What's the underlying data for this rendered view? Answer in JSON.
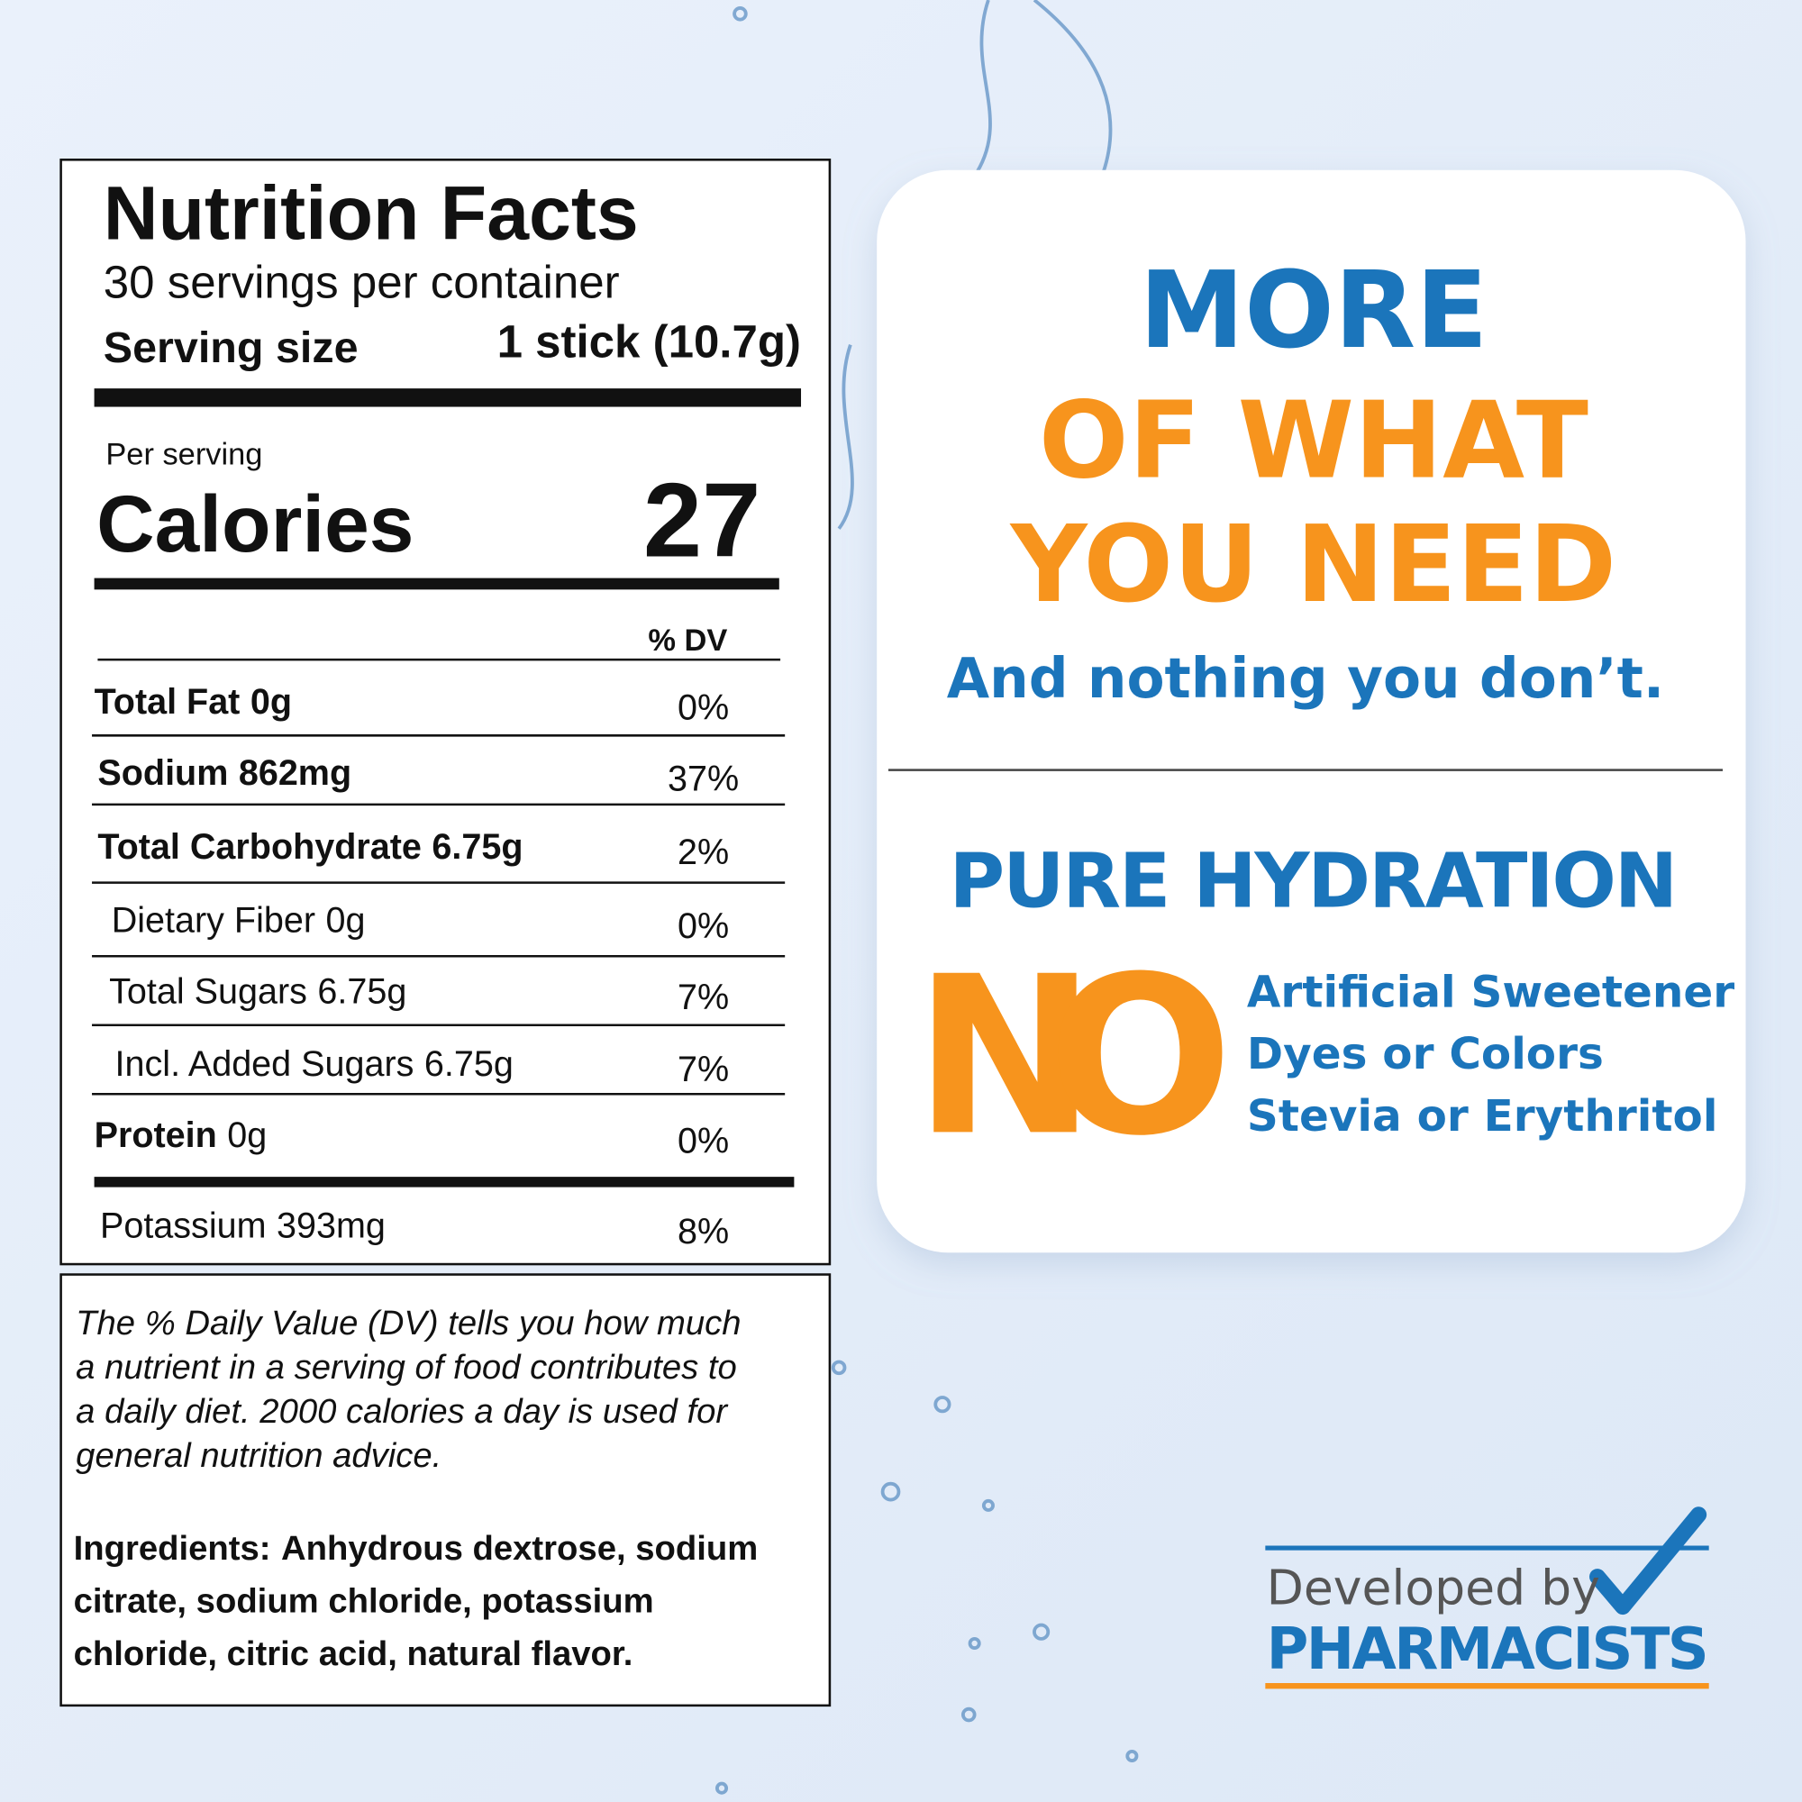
{
  "label": {
    "title": "Nutrition Facts",
    "servings": "30 servings per container",
    "serving_size_label": "Serving size",
    "serving_size": "1 stick (10.7g)",
    "per_serving": "Per serving",
    "calories_label": "Calories",
    "calories": 27,
    "dv_header": "% DV",
    "rows": [
      {
        "name": "Total Fat",
        "amount": "0g",
        "dv": "0%"
      },
      {
        "name": "Sodium",
        "amount": "862mg",
        "dv": "37%"
      },
      {
        "name": "Total Carbohydrate",
        "amount": "6.75g",
        "dv": "2%"
      },
      {
        "name": "Dietary Fiber",
        "amount": "0g",
        "dv": "0%"
      },
      {
        "name": "Total Sugars",
        "amount": "6.75g",
        "dv": "7%"
      },
      {
        "name": "Incl. Added Sugars",
        "amount": "6.75g",
        "dv": "7%"
      },
      {
        "name": "Protein",
        "amount": "0g",
        "dv": "0%"
      },
      {
        "name": "Potassium",
        "amount": "393mg",
        "dv": "8%"
      }
    ]
  },
  "footnote": {
    "lines": [
      "The % Daily Value (DV) tells you how much",
      "a nutrient in a serving of food contributes to",
      "a daily diet. 2000 calories a day is used for",
      "general nutrition advice."
    ]
  },
  "ingredients": {
    "label": "Ingredients:",
    "lines": [
      "Anhydrous dextrose, sodium",
      "citrate, sodium chloride, potassium",
      "chloride, citric acid, natural flavor."
    ]
  },
  "promo": {
    "headline": [
      "MORE",
      "OF WHAT",
      "YOU NEED"
    ],
    "tagline": "And nothing you don’t.",
    "subhead": "PURE HYDRATION",
    "no": "NO",
    "no_items": [
      "Artificial Sweetener",
      "Dyes or Colors",
      "Stevia or Erythritol"
    ]
  },
  "badge": {
    "line1": "Developed by",
    "line2": "PHARMACISTS"
  }
}
